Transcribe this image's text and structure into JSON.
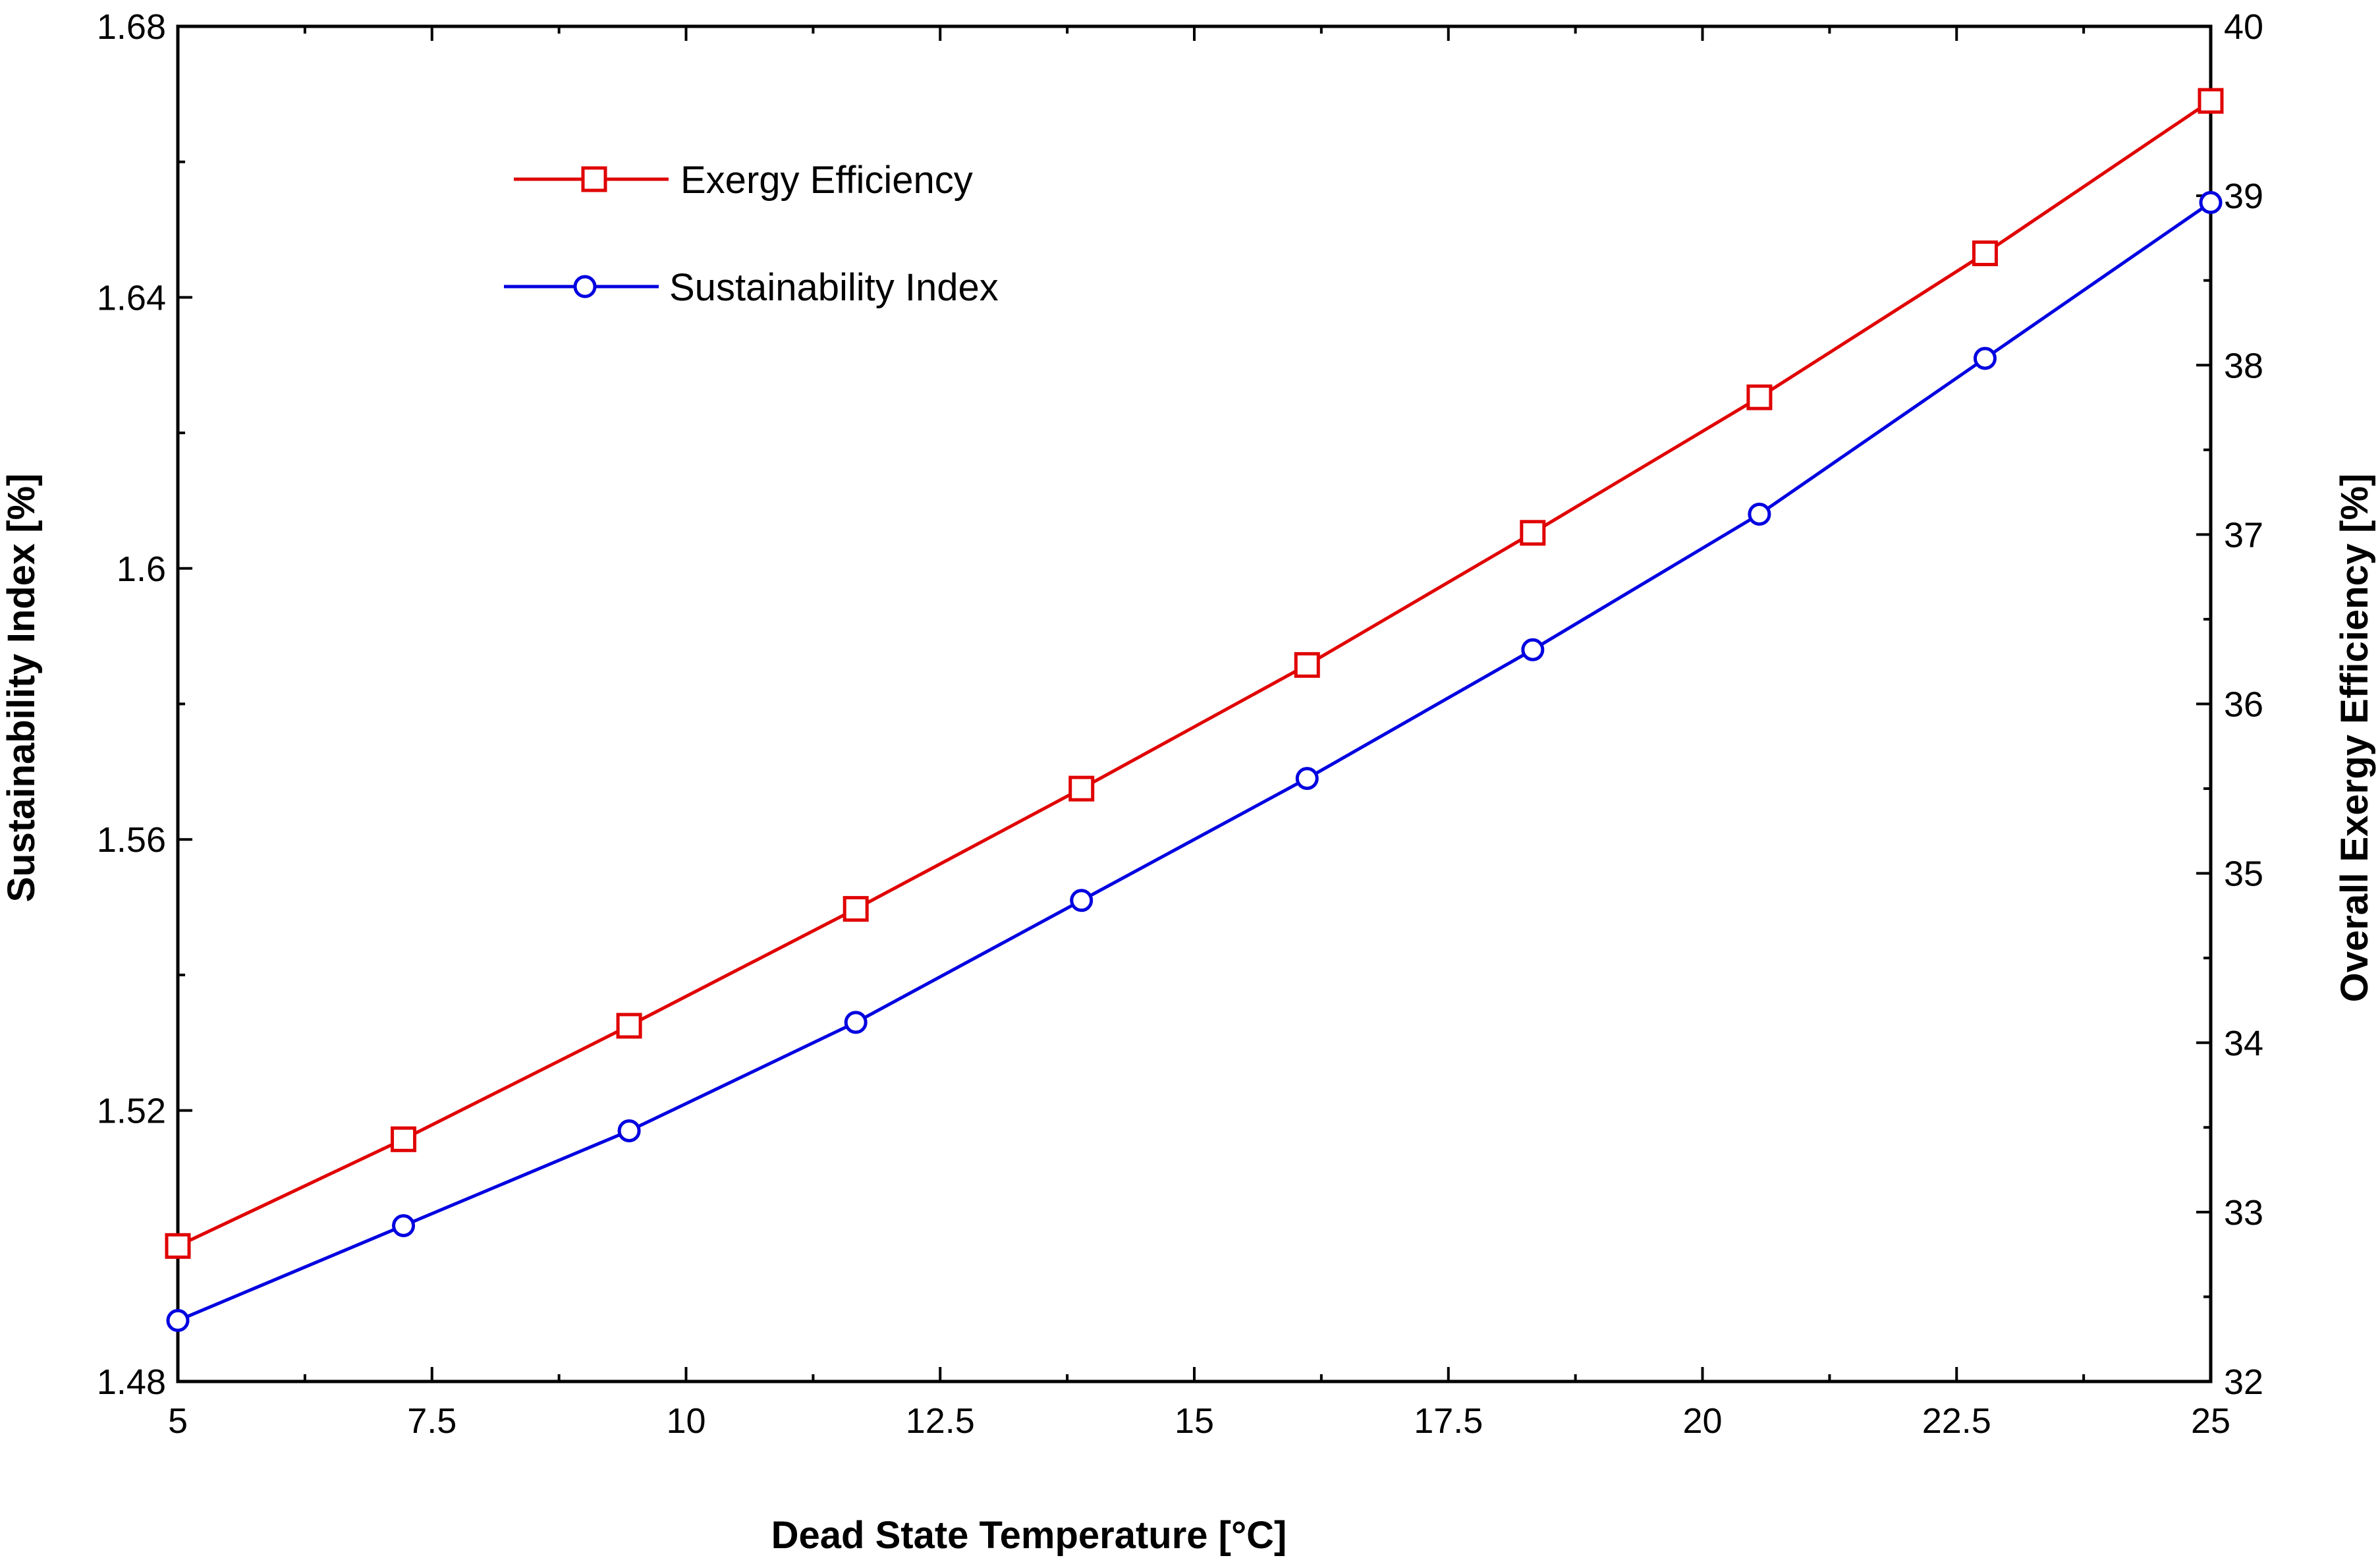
{
  "chart_data": {
    "type": "line",
    "title": "",
    "xlabel": "Dead State Temperature [°C]",
    "ylabel_left": "Sustainability Index [%]",
    "ylabel_right": "Overall Exergy Efficiency [%]",
    "xlim": [
      5,
      25
    ],
    "ylim_left": [
      1.48,
      1.68
    ],
    "ylim_right": [
      32,
      40
    ],
    "x_ticks": [
      5,
      7.5,
      10,
      12.5,
      15,
      17.5,
      20,
      22.5,
      25
    ],
    "x_tick_labels": [
      "5",
      "7.5",
      "10",
      "12.5",
      "15",
      "17.5",
      "20",
      "22.5",
      "25"
    ],
    "y_left_ticks": [
      1.48,
      1.52,
      1.56,
      1.6,
      1.64,
      1.68
    ],
    "y_left_tick_labels": [
      "1.48",
      "1.52",
      "1.56",
      "1.6",
      "1.64",
      "1.68"
    ],
    "y_right_ticks": [
      32,
      33,
      34,
      35,
      36,
      37,
      38,
      39,
      40
    ],
    "y_right_tick_labels": [
      "32",
      "33",
      "34",
      "35",
      "36",
      "37",
      "38",
      "39",
      "40"
    ],
    "x": [
      5,
      7.22,
      9.44,
      11.67,
      13.89,
      16.11,
      18.33,
      20.56,
      22.78,
      25
    ],
    "grid": false,
    "legend_position": "top-left",
    "series": [
      {
        "name": "Exergy Efficiency",
        "axis": "right",
        "color": "#e00000",
        "marker": "square",
        "values": [
          32.8,
          33.43,
          34.1,
          34.79,
          35.5,
          36.23,
          37.01,
          37.81,
          38.66,
          39.56
        ]
      },
      {
        "name": "Sustainability Index",
        "axis": "left",
        "color": "#0000e0",
        "marker": "circle",
        "values": [
          1.489,
          1.503,
          1.517,
          1.533,
          1.551,
          1.569,
          1.588,
          1.608,
          1.631,
          1.654
        ]
      }
    ]
  }
}
